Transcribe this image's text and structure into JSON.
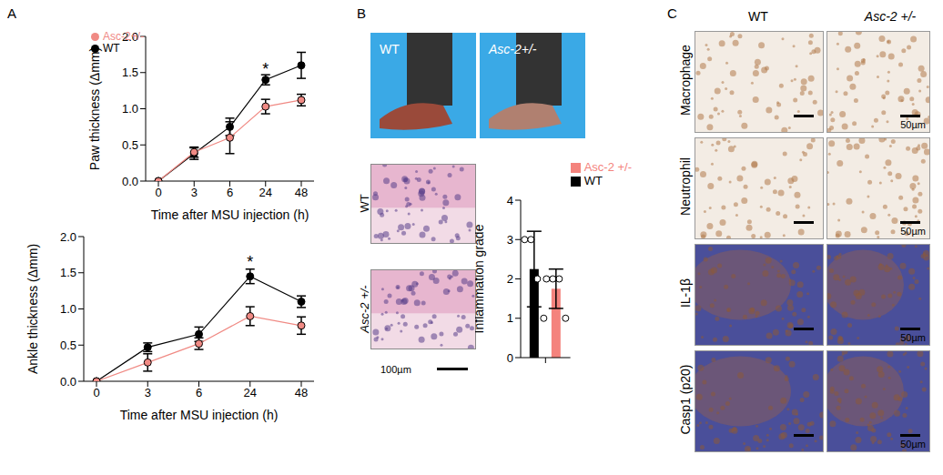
{
  "panel_labels": [
    "A",
    "B",
    "C"
  ],
  "chart_data": [
    {
      "type": "line",
      "categories": [
        "0",
        "3",
        "6",
        "24",
        "48"
      ],
      "x_label": "Time after MSU injection (h)",
      "y_label": "Paw thickness (Δmm)",
      "ylim": [
        0,
        2
      ],
      "yticks": [
        {
          "value": 0,
          "label": "0.0"
        },
        0.5,
        {
          "value": 1,
          "label": "1.0"
        },
        1.5,
        {
          "value": 2,
          "label": "2.0"
        }
      ],
      "legend": "upper left",
      "marker": "o",
      "series": [
        {
          "name": "WT",
          "color": "#000000",
          "values": [
            0,
            0.38,
            0.75,
            1.4,
            1.6
          ],
          "error": [
            0,
            0.08,
            0.12,
            0.07,
            0.18
          ]
        },
        {
          "name": "Asc-2+/-",
          "color": "#f08a84",
          "values": [
            0,
            0.4,
            0.6,
            1.03,
            1.12
          ],
          "error": [
            0,
            0.07,
            0.22,
            0.1,
            0.08
          ]
        }
      ],
      "annotations": [
        {
          "text": "*",
          "x": "24",
          "y": 1.55
        }
      ]
    },
    {
      "type": "line",
      "categories": [
        "0",
        "3",
        "6",
        "24",
        "48"
      ],
      "x_label": "Time after MSU injection (h)",
      "y_label": "Ankle thickness (Δmm)",
      "ylim": [
        0,
        2
      ],
      "yticks": [
        {
          "value": 0,
          "label": "0.0"
        },
        0.5,
        {
          "value": 1,
          "label": "1.0"
        },
        1.5,
        {
          "value": 2,
          "label": "2.0"
        }
      ],
      "marker": "o",
      "series": [
        {
          "name": "WT",
          "color": "#000000",
          "values": [
            0,
            0.47,
            0.65,
            1.45,
            1.1
          ],
          "error": [
            0,
            0.06,
            0.1,
            0.1,
            0.08
          ]
        },
        {
          "name": "Asc-2+/-",
          "color": "#f08a84",
          "values": [
            0,
            0.26,
            0.52,
            0.9,
            0.77
          ],
          "error": [
            0,
            0.12,
            0.08,
            0.13,
            0.12
          ]
        }
      ],
      "annotations": [
        {
          "text": "*",
          "x": "24",
          "y": 1.65
        }
      ]
    },
    {
      "type": "bar",
      "categories": [
        null
      ],
      "y_label": "Inflammation grade",
      "ylim": [
        0,
        4
      ],
      "yticks": [
        0,
        1,
        2,
        3,
        4
      ],
      "legend": "upper right",
      "series": [
        {
          "name": "WT",
          "color": "#000000",
          "values": [
            2.25
          ],
          "error": [
            0.96
          ],
          "points": [
            [
              3,
              3,
              2,
              1
            ]
          ]
        },
        {
          "name": "Asc-2 +/-",
          "color": "#f4837d",
          "values": [
            1.75
          ],
          "error": [
            0.5
          ],
          "points": [
            [
              2,
              2,
              2,
              1
            ]
          ]
        }
      ]
    }
  ],
  "photos": {
    "labels": [
      "WT",
      "Asc-2+/-"
    ]
  },
  "histology_B": {
    "row_labels": [
      "WT",
      "Asc-2 +/-"
    ],
    "scale_bar": "100µm"
  },
  "histology_C": {
    "column_labels": [
      "WT",
      "Asc-2 +/-"
    ],
    "row_labels": [
      "Macrophage",
      "Neutrophil",
      "IL-1β",
      "Casp1 (p20)"
    ],
    "scale_bar": "50µm"
  }
}
